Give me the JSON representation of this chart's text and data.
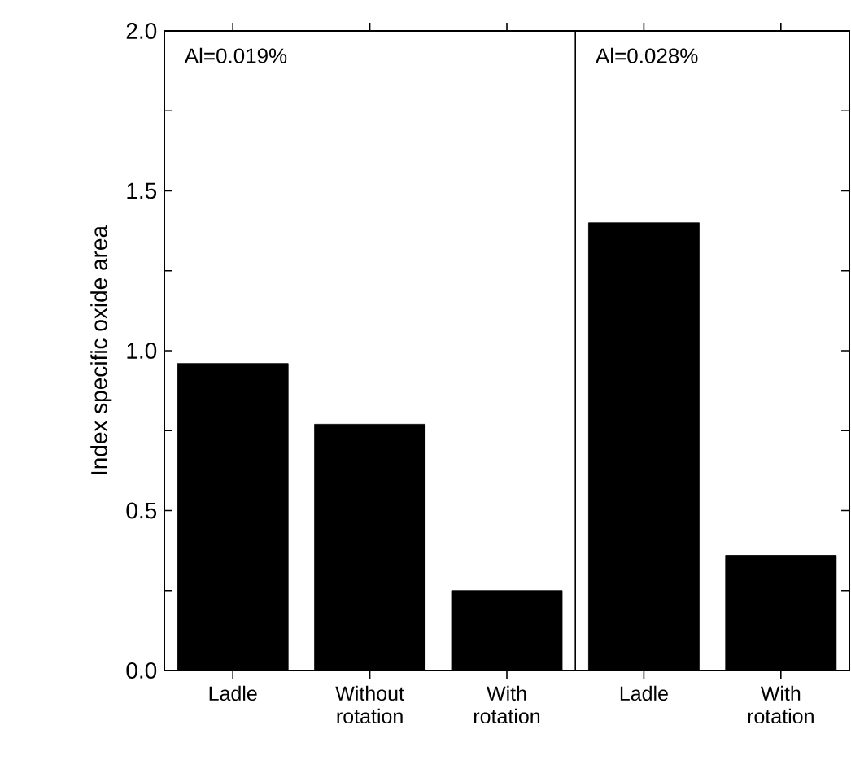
{
  "chart_data": {
    "type": "bar",
    "ylabel": "Index specific oxide area",
    "categories": [
      "Ladle",
      "Without rotation",
      "With rotation",
      "Ladle",
      "With rotation"
    ],
    "values": [
      0.96,
      0.77,
      0.25,
      1.4,
      0.36
    ],
    "color": "#000000",
    "ylim": [
      0,
      2.0
    ],
    "yticks": [
      {
        "value": 0,
        "label": "0.0"
      },
      {
        "value": 0.25,
        "label": null
      },
      {
        "value": 0.5,
        "label": "0.5"
      },
      {
        "value": 0.75,
        "label": null
      },
      {
        "value": 1.0,
        "label": "1.0"
      },
      {
        "value": 1.25,
        "label": null
      },
      {
        "value": 1.5,
        "label": "1.5"
      },
      {
        "value": 1.75,
        "label": null
      },
      {
        "value": 2.0,
        "label": "2.0"
      }
    ],
    "annotations": [
      "Al=0.019%",
      "Al=0.028%"
    ]
  }
}
